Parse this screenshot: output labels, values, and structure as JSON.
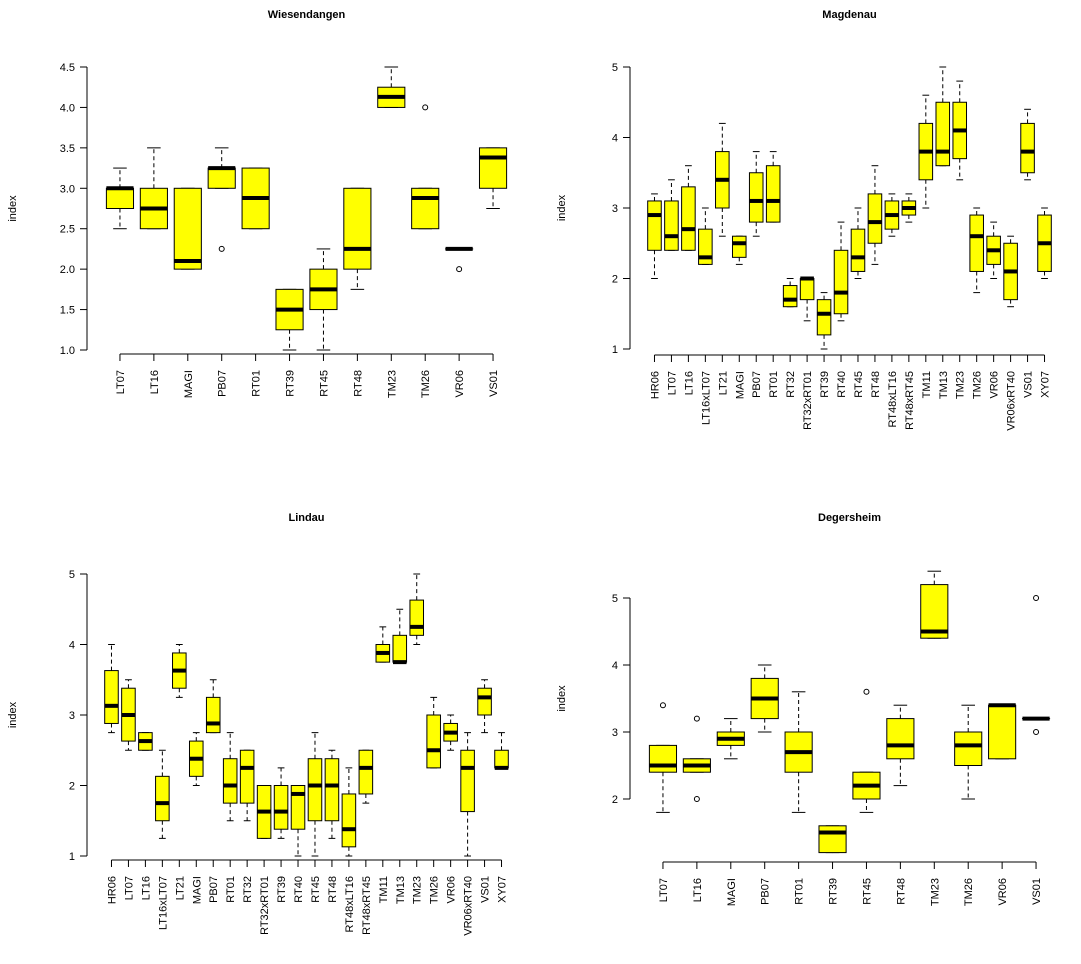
{
  "chart_data": [
    {
      "type": "box",
      "title": "Wiesendangen",
      "ylabel": "index",
      "ylim": [
        1.0,
        4.5
      ],
      "yticks": [
        "1.0",
        "1.5",
        "2.0",
        "2.5",
        "3.0",
        "3.5",
        "4.0",
        "4.5"
      ],
      "fill_color": "#ffff00",
      "categories": [
        "LT07",
        "LT16",
        "MAGI",
        "PB07",
        "RT01",
        "RT39",
        "RT45",
        "RT48",
        "TM23",
        "TM26",
        "VR06",
        "VS01"
      ],
      "boxes": [
        {
          "wlo": 2.5,
          "q1": 2.75,
          "med": 3.0,
          "q3": 3.0,
          "whi": 3.25,
          "out": []
        },
        {
          "wlo": 2.5,
          "q1": 2.5,
          "med": 2.75,
          "q3": 3.0,
          "whi": 3.5,
          "out": []
        },
        {
          "wlo": 2.0,
          "q1": 2.0,
          "med": 2.1,
          "q3": 3.0,
          "whi": 3.0,
          "out": []
        },
        {
          "wlo": 3.0,
          "q1": 3.0,
          "med": 3.25,
          "q3": 3.25,
          "whi": 3.5,
          "out": [
            2.25
          ]
        },
        {
          "wlo": 2.5,
          "q1": 2.5,
          "med": 2.88,
          "q3": 3.25,
          "whi": 3.25,
          "out": []
        },
        {
          "wlo": 1.0,
          "q1": 1.25,
          "med": 1.5,
          "q3": 1.75,
          "whi": 1.75,
          "out": []
        },
        {
          "wlo": 1.0,
          "q1": 1.5,
          "med": 1.75,
          "q3": 2.0,
          "whi": 2.25,
          "out": []
        },
        {
          "wlo": 1.75,
          "q1": 2.0,
          "med": 2.25,
          "q3": 3.0,
          "whi": 3.0,
          "out": []
        },
        {
          "wlo": 4.0,
          "q1": 4.0,
          "med": 4.13,
          "q3": 4.25,
          "whi": 4.5,
          "out": []
        },
        {
          "wlo": 2.5,
          "q1": 2.5,
          "med": 2.88,
          "q3": 3.0,
          "whi": 3.0,
          "out": [
            4.0
          ]
        },
        {
          "wlo": 2.25,
          "q1": 2.25,
          "med": 2.25,
          "q3": 2.25,
          "whi": 2.25,
          "out": [
            2.0
          ]
        },
        {
          "wlo": 2.75,
          "q1": 3.0,
          "med": 3.38,
          "q3": 3.5,
          "whi": 3.5,
          "out": []
        }
      ]
    },
    {
      "type": "box",
      "title": "Magdenau",
      "ylabel": "index",
      "ylim": [
        1,
        5
      ],
      "yticks": [
        "1",
        "2",
        "3",
        "4",
        "5"
      ],
      "fill_color": "#ffff00",
      "categories": [
        "HR06",
        "LT07",
        "LT16",
        "LT16xLT07",
        "LT21",
        "MAGI",
        "PB07",
        "RT01",
        "RT32",
        "RT32xRT01",
        "RT39",
        "RT40",
        "RT45",
        "RT48",
        "RT48xLT16",
        "RT48xRT45",
        "TM11",
        "TM13",
        "TM23",
        "TM26",
        "VR06",
        "VR06xRT40",
        "VS01",
        "XY07"
      ],
      "boxes": [
        {
          "wlo": 2.0,
          "q1": 2.4,
          "med": 2.9,
          "q3": 3.1,
          "whi": 3.2,
          "out": []
        },
        {
          "wlo": 2.4,
          "q1": 2.4,
          "med": 2.6,
          "q3": 3.1,
          "whi": 3.4,
          "out": []
        },
        {
          "wlo": 2.4,
          "q1": 2.4,
          "med": 2.7,
          "q3": 3.3,
          "whi": 3.6,
          "out": []
        },
        {
          "wlo": 2.2,
          "q1": 2.2,
          "med": 2.3,
          "q3": 2.7,
          "whi": 3.0,
          "out": []
        },
        {
          "wlo": 2.6,
          "q1": 3.0,
          "med": 3.4,
          "q3": 3.8,
          "whi": 4.2,
          "out": []
        },
        {
          "wlo": 2.2,
          "q1": 2.3,
          "med": 2.5,
          "q3": 2.6,
          "whi": 2.6,
          "out": []
        },
        {
          "wlo": 2.6,
          "q1": 2.8,
          "med": 3.1,
          "q3": 3.5,
          "whi": 3.8,
          "out": []
        },
        {
          "wlo": 2.8,
          "q1": 2.8,
          "med": 3.1,
          "q3": 3.6,
          "whi": 3.8,
          "out": []
        },
        {
          "wlo": 1.6,
          "q1": 1.6,
          "med": 1.7,
          "q3": 1.9,
          "whi": 2.0,
          "out": []
        },
        {
          "wlo": 1.4,
          "q1": 1.7,
          "med": 2.0,
          "q3": 2.0,
          "whi": 2.0,
          "out": []
        },
        {
          "wlo": 1.0,
          "q1": 1.2,
          "med": 1.5,
          "q3": 1.7,
          "whi": 1.8,
          "out": []
        },
        {
          "wlo": 1.4,
          "q1": 1.5,
          "med": 1.8,
          "q3": 2.4,
          "whi": 2.8,
          "out": []
        },
        {
          "wlo": 2.0,
          "q1": 2.1,
          "med": 2.3,
          "q3": 2.7,
          "whi": 3.0,
          "out": []
        },
        {
          "wlo": 2.2,
          "q1": 2.5,
          "med": 2.8,
          "q3": 3.2,
          "whi": 3.6,
          "out": []
        },
        {
          "wlo": 2.6,
          "q1": 2.7,
          "med": 2.9,
          "q3": 3.1,
          "whi": 3.2,
          "out": []
        },
        {
          "wlo": 2.8,
          "q1": 2.9,
          "med": 3.0,
          "q3": 3.1,
          "whi": 3.2,
          "out": []
        },
        {
          "wlo": 3.0,
          "q1": 3.4,
          "med": 3.8,
          "q3": 4.2,
          "whi": 4.6,
          "out": []
        },
        {
          "wlo": 3.6,
          "q1": 3.6,
          "med": 3.8,
          "q3": 4.5,
          "whi": 5.0,
          "out": []
        },
        {
          "wlo": 3.4,
          "q1": 3.7,
          "med": 4.1,
          "q3": 4.5,
          "whi": 4.8,
          "out": []
        },
        {
          "wlo": 1.8,
          "q1": 2.1,
          "med": 2.6,
          "q3": 2.9,
          "whi": 3.0,
          "out": []
        },
        {
          "wlo": 2.0,
          "q1": 2.2,
          "med": 2.4,
          "q3": 2.6,
          "whi": 2.8,
          "out": []
        },
        {
          "wlo": 1.6,
          "q1": 1.7,
          "med": 2.1,
          "q3": 2.5,
          "whi": 2.6,
          "out": []
        },
        {
          "wlo": 3.4,
          "q1": 3.5,
          "med": 3.8,
          "q3": 4.2,
          "whi": 4.4,
          "out": []
        },
        {
          "wlo": 2.0,
          "q1": 2.1,
          "med": 2.5,
          "q3": 2.9,
          "whi": 3.0,
          "out": []
        }
      ]
    },
    {
      "type": "box",
      "title": "Lindau",
      "ylabel": "index",
      "ylim": [
        1,
        5
      ],
      "yticks": [
        "1",
        "2",
        "3",
        "4",
        "5"
      ],
      "fill_color": "#ffff00",
      "categories": [
        "HR06",
        "LT07",
        "LT16",
        "LT16xLT07",
        "LT21",
        "MAGI",
        "PB07",
        "RT01",
        "RT32",
        "RT32xRT01",
        "RT39",
        "RT40",
        "RT45",
        "RT48",
        "RT48xLT16",
        "RT48xRT45",
        "TM11",
        "TM13",
        "TM23",
        "TM26",
        "VR06",
        "VR06xRT40",
        "VS01",
        "XY07"
      ],
      "boxes": [
        {
          "wlo": 2.75,
          "q1": 2.88,
          "med": 3.13,
          "q3": 3.63,
          "whi": 4.0,
          "out": []
        },
        {
          "wlo": 2.5,
          "q1": 2.63,
          "med": 3.0,
          "q3": 3.38,
          "whi": 3.5,
          "out": []
        },
        {
          "wlo": 2.5,
          "q1": 2.5,
          "med": 2.63,
          "q3": 2.75,
          "whi": 2.75,
          "out": []
        },
        {
          "wlo": 1.25,
          "q1": 1.5,
          "med": 1.75,
          "q3": 2.13,
          "whi": 2.5,
          "out": []
        },
        {
          "wlo": 3.25,
          "q1": 3.38,
          "med": 3.63,
          "q3": 3.88,
          "whi": 4.0,
          "out": []
        },
        {
          "wlo": 2.0,
          "q1": 2.13,
          "med": 2.38,
          "q3": 2.63,
          "whi": 2.75,
          "out": []
        },
        {
          "wlo": 2.75,
          "q1": 2.75,
          "med": 2.88,
          "q3": 3.25,
          "whi": 3.5,
          "out": []
        },
        {
          "wlo": 1.5,
          "q1": 1.75,
          "med": 2.0,
          "q3": 2.38,
          "whi": 2.75,
          "out": []
        },
        {
          "wlo": 1.5,
          "q1": 1.75,
          "med": 2.25,
          "q3": 2.5,
          "whi": 2.5,
          "out": []
        },
        {
          "wlo": 1.25,
          "q1": 1.25,
          "med": 1.63,
          "q3": 2.0,
          "whi": 2.0,
          "out": []
        },
        {
          "wlo": 1.25,
          "q1": 1.38,
          "med": 1.63,
          "q3": 2.0,
          "whi": 2.25,
          "out": []
        },
        {
          "wlo": 1.0,
          "q1": 1.38,
          "med": 1.88,
          "q3": 2.0,
          "whi": 2.0,
          "out": []
        },
        {
          "wlo": 1.0,
          "q1": 1.5,
          "med": 2.0,
          "q3": 2.38,
          "whi": 2.75,
          "out": []
        },
        {
          "wlo": 1.25,
          "q1": 1.5,
          "med": 2.0,
          "q3": 2.38,
          "whi": 2.5,
          "out": []
        },
        {
          "wlo": 1.0,
          "q1": 1.13,
          "med": 1.38,
          "q3": 1.88,
          "whi": 2.25,
          "out": []
        },
        {
          "wlo": 1.75,
          "q1": 1.88,
          "med": 2.25,
          "q3": 2.5,
          "whi": 2.5,
          "out": []
        },
        {
          "wlo": 3.75,
          "q1": 3.75,
          "med": 3.88,
          "q3": 4.0,
          "whi": 4.25,
          "out": []
        },
        {
          "wlo": 3.75,
          "q1": 3.75,
          "med": 3.75,
          "q3": 4.13,
          "whi": 4.5,
          "out": []
        },
        {
          "wlo": 4.0,
          "q1": 4.13,
          "med": 4.25,
          "q3": 4.63,
          "whi": 5.0,
          "out": []
        },
        {
          "wlo": 2.25,
          "q1": 2.25,
          "med": 2.5,
          "q3": 3.0,
          "whi": 3.25,
          "out": []
        },
        {
          "wlo": 2.5,
          "q1": 2.63,
          "med": 2.75,
          "q3": 2.88,
          "whi": 3.0,
          "out": []
        },
        {
          "wlo": 1.0,
          "q1": 1.63,
          "med": 2.25,
          "q3": 2.5,
          "whi": 2.75,
          "out": []
        },
        {
          "wlo": 2.75,
          "q1": 3.0,
          "med": 3.25,
          "q3": 3.38,
          "whi": 3.5,
          "out": []
        },
        {
          "wlo": 2.25,
          "q1": 2.25,
          "med": 2.25,
          "q3": 2.5,
          "whi": 2.75,
          "out": []
        }
      ]
    },
    {
      "type": "box",
      "title": "Degersheim",
      "ylabel": "index",
      "ylim": [
        1.2,
        5.4
      ],
      "yticks": [
        "2",
        "3",
        "4",
        "5"
      ],
      "ytick_values": [
        2,
        3,
        4,
        5
      ],
      "fill_color": "#ffff00",
      "categories": [
        "LT07",
        "LT16",
        "MAGI",
        "PB07",
        "RT01",
        "RT39",
        "RT45",
        "RT48",
        "TM23",
        "TM26",
        "VR06",
        "VS01"
      ],
      "boxes": [
        {
          "wlo": 1.8,
          "q1": 2.4,
          "med": 2.5,
          "q3": 2.8,
          "whi": 2.8,
          "out": [
            3.4
          ]
        },
        {
          "wlo": 2.4,
          "q1": 2.4,
          "med": 2.5,
          "q3": 2.6,
          "whi": 2.6,
          "out": [
            3.2,
            2.0
          ]
        },
        {
          "wlo": 2.6,
          "q1": 2.8,
          "med": 2.9,
          "q3": 3.0,
          "whi": 3.2,
          "out": []
        },
        {
          "wlo": 3.0,
          "q1": 3.2,
          "med": 3.5,
          "q3": 3.8,
          "whi": 4.0,
          "out": []
        },
        {
          "wlo": 1.8,
          "q1": 2.4,
          "med": 2.7,
          "q3": 3.0,
          "whi": 3.6,
          "out": []
        },
        {
          "wlo": 1.2,
          "q1": 1.2,
          "med": 1.5,
          "q3": 1.6,
          "whi": 1.6,
          "out": []
        },
        {
          "wlo": 1.8,
          "q1": 2.0,
          "med": 2.2,
          "q3": 2.4,
          "whi": 2.4,
          "out": [
            3.6
          ]
        },
        {
          "wlo": 2.2,
          "q1": 2.6,
          "med": 2.8,
          "q3": 3.2,
          "whi": 3.4,
          "out": []
        },
        {
          "wlo": 4.4,
          "q1": 4.4,
          "med": 4.5,
          "q3": 5.2,
          "whi": 5.4,
          "out": []
        },
        {
          "wlo": 2.0,
          "q1": 2.5,
          "med": 2.8,
          "q3": 3.0,
          "whi": 3.4,
          "out": []
        },
        {
          "wlo": 2.6,
          "q1": 2.6,
          "med": 3.4,
          "q3": 3.4,
          "whi": 3.4,
          "out": []
        },
        {
          "wlo": 3.2,
          "q1": 3.2,
          "med": 3.2,
          "q3": 3.2,
          "whi": 3.2,
          "out": [
            5.0,
            3.0
          ]
        }
      ]
    }
  ]
}
